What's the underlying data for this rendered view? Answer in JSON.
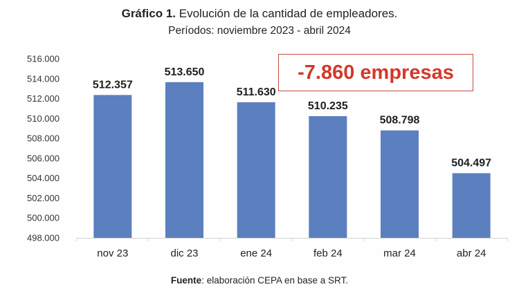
{
  "chart_data": {
    "type": "bar",
    "title_prefix": "Gráfico 1.",
    "title": "Evolución de la cantidad de empleadores.",
    "subtitle": "Períodos: noviembre 2023 - abril 2024",
    "categories": [
      "nov 23",
      "dic 23",
      "ene 24",
      "feb 24",
      "mar 24",
      "abr 24"
    ],
    "values": [
      512357,
      513650,
      511630,
      510235,
      508798,
      504497
    ],
    "value_labels": [
      "512.357",
      "513.650",
      "511.630",
      "510.235",
      "508.798",
      "504.497"
    ],
    "ylim": [
      498000,
      516000
    ],
    "yticks": [
      498000,
      500000,
      502000,
      504000,
      506000,
      508000,
      510000,
      512000,
      514000,
      516000
    ],
    "ytick_labels": [
      "498.000",
      "500.000",
      "502.000",
      "504.000",
      "506.000",
      "508.000",
      "510.000",
      "512.000",
      "514.000",
      "516.000"
    ],
    "xlabel": "",
    "ylabel": "",
    "grid": false,
    "bar_color": "#5b7fbf",
    "annotation": "-7.860 empresas",
    "annotation_color": "#d3382a",
    "source_bold": "Fuente",
    "source_text": ": elaboración CEPA en base a SRT."
  }
}
